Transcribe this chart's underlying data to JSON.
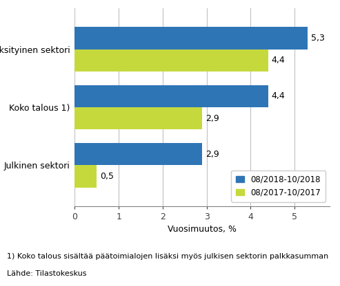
{
  "categories": [
    "Julkinen sektori",
    "Koko talous 1)",
    "Yksityinen sektori"
  ],
  "series": [
    {
      "label": "08/2018-10/2018",
      "values": [
        2.9,
        4.4,
        5.3
      ],
      "color": "#2E75B6"
    },
    {
      "label": "08/2017-10/2017",
      "values": [
        0.5,
        2.9,
        4.4
      ],
      "color": "#C5D93D"
    }
  ],
  "xlabel": "Vuosimuutos, %",
  "xlim": [
    0,
    5.8
  ],
  "xticks": [
    0,
    1,
    2,
    3,
    4,
    5
  ],
  "footnote1": "1) Koko talous sisältää päätoimialojen lisäksi myös julkisen sektorin palkkasumman",
  "footnote2": "Lähde: Tilastokeskus",
  "bar_height": 0.38,
  "label_fontsize": 9,
  "tick_fontsize": 9,
  "xlabel_fontsize": 9,
  "footnote_fontsize": 8,
  "legend_fontsize": 8.5,
  "background_color": "#FFFFFF",
  "grid_color": "#C0C0C0"
}
